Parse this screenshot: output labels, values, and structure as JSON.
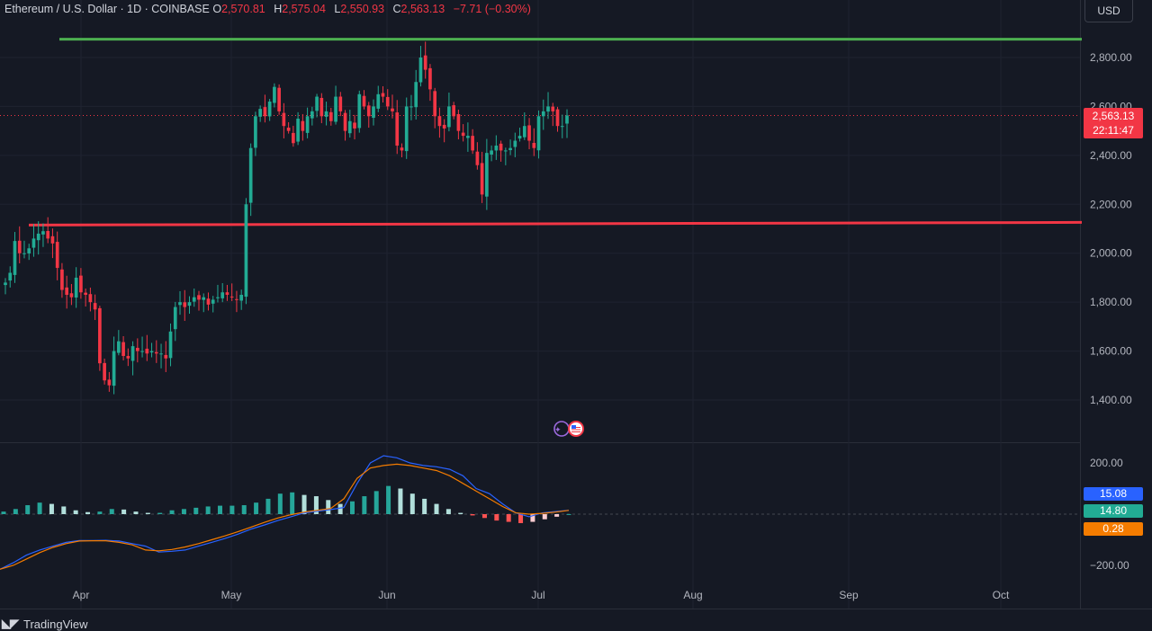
{
  "legend": {
    "symbol": "Ethereum / U.S. Dollar · 1D · COINBASE",
    "o_label": "O",
    "o_value": "2,570.81",
    "h_label": "H",
    "h_value": "2,575.04",
    "l_label": "L",
    "l_value": "2,550.93",
    "c_label": "C",
    "c_value": "2,563.13",
    "change": "−7.71 (−0.30%)"
  },
  "currency_button": "USD",
  "price_tag": {
    "price": "2,563.13",
    "countdown": "22:11:47"
  },
  "macd_tags": {
    "macd": "15.08",
    "signal": "14.80",
    "histogram": "0.28"
  },
  "brand": {
    "name": "TradingView",
    "icon": "tradingview-logo-icon"
  },
  "colors": {
    "background": "#151924",
    "up": "#22ab94",
    "down": "#f23645",
    "resistance": "#4caf50",
    "support": "#f23645",
    "macd_line": "#2962ff",
    "signal_line": "#f57c00"
  },
  "chart_data": {
    "type": "candlestick",
    "title": "Ethereum / U.S. Dollar · 1D · COINBASE",
    "x_ticks": [
      "Apr",
      "May",
      "Jun",
      "Jul",
      "Aug",
      "Sep",
      "Oct"
    ],
    "y_ticks": [
      "2,800.00",
      "2,600.00",
      "2,400.00",
      "2,200.00",
      "2,000.00",
      "1,800.00",
      "1,600.00",
      "1,400.00"
    ],
    "ylim": [
      1250,
      2900
    ],
    "current_price": 2563.13,
    "horizontal_levels": [
      {
        "name": "resistance",
        "value": 2875,
        "color": "#4caf50"
      },
      {
        "name": "support",
        "value": 2115,
        "color": "#f23645"
      }
    ],
    "close_path": [
      1880,
      1920,
      2050,
      2000,
      2000,
      2020,
      2060,
      2080,
      2090,
      2060,
      2040,
      1940,
      1850,
      1830,
      1820,
      1900,
      1840,
      1830,
      1800,
      1770,
      1550,
      1480,
      1460,
      1600,
      1640,
      1580,
      1570,
      1620,
      1600,
      1600,
      1590,
      1600,
      1590,
      1590,
      1570,
      1680,
      1780,
      1800,
      1780,
      1800,
      1820,
      1810,
      1820,
      1790,
      1810,
      1820,
      1840,
      1830,
      1820,
      1810,
      1830,
      2200,
      2430,
      2560,
      2590,
      2560,
      2620,
      2680,
      2580,
      2520,
      2500,
      2450,
      2550,
      2500,
      2560,
      2580,
      2640,
      2560,
      2580,
      2540,
      2640,
      2580,
      2500,
      2540,
      2510,
      2650,
      2600,
      2560,
      2600,
      2650,
      2640,
      2600,
      2580,
      2440,
      2420,
      2600,
      2600,
      2700,
      2800,
      2750,
      2670,
      2560,
      2520,
      2510,
      2600,
      2560,
      2500,
      2480,
      2480,
      2420,
      2360,
      2240,
      2410,
      2420,
      2440,
      2420,
      2420,
      2430,
      2460,
      2480,
      2520,
      2460,
      2430,
      2560,
      2580,
      2600,
      2580,
      2520,
      2520,
      2563.13
    ],
    "macd": {
      "ylim": [
        -230,
        230
      ],
      "y_ticks": [
        "200.00",
        "−200.00"
      ],
      "macd_line": [
        -215,
        -190,
        -160,
        -140,
        -125,
        -110,
        -103,
        -103,
        -102,
        -105,
        -115,
        -125,
        -148,
        -145,
        -140,
        -125,
        -110,
        -95,
        -78,
        -58,
        -42,
        -25,
        -10,
        5,
        12,
        18,
        26,
        120,
        200,
        228,
        220,
        200,
        190,
        185,
        175,
        150,
        100,
        80,
        40,
        5,
        -10,
        5,
        10,
        15.08
      ],
      "signal_line": [
        -215,
        -200,
        -175,
        -150,
        -130,
        -115,
        -105,
        -104,
        -104,
        -110,
        -120,
        -140,
        -143,
        -138,
        -128,
        -115,
        -100,
        -85,
        -68,
        -50,
        -32,
        -15,
        -2,
        8,
        15,
        22,
        60,
        140,
        180,
        190,
        195,
        190,
        180,
        170,
        150,
        120,
        90,
        60,
        30,
        5,
        0,
        3,
        8,
        14.8
      ],
      "histogram": [
        10,
        20,
        35,
        45,
        40,
        30,
        15,
        8,
        10,
        20,
        18,
        10,
        5,
        5,
        15,
        20,
        25,
        30,
        33,
        33,
        35,
        45,
        60,
        80,
        85,
        75,
        70,
        55,
        40,
        50,
        70,
        90,
        110,
        100,
        80,
        60,
        40,
        20,
        5,
        -5,
        -15,
        -25,
        -30,
        -35,
        -30,
        -20,
        -10,
        0.28
      ]
    }
  }
}
